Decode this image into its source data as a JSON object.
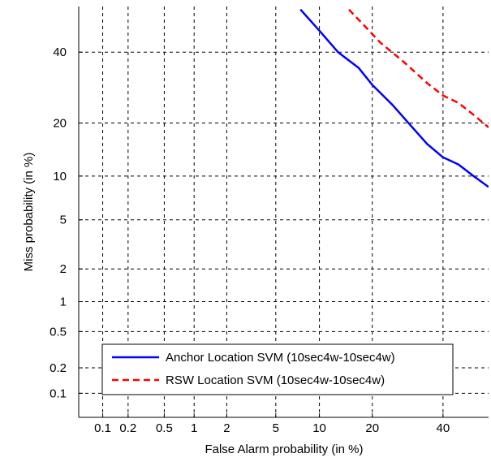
{
  "chart_data": {
    "type": "line",
    "title": "",
    "xlabel": "False Alarm probability (in %)",
    "ylabel": "Miss probability (in %)",
    "x_scale": "probit",
    "y_scale": "probit",
    "xlim": [
      0.05,
      55
    ],
    "ylim": [
      0.05,
      55
    ],
    "grid": true,
    "legend_position": "bottom-left",
    "x_ticks": [
      0.1,
      0.2,
      0.5,
      1,
      2,
      5,
      10,
      20,
      40
    ],
    "x_tick_labels": [
      "0.1",
      "0.2",
      "0.5",
      "1",
      "2",
      "5",
      "10",
      "20",
      "40"
    ],
    "y_ticks": [
      0.1,
      0.2,
      0.5,
      1,
      2,
      5,
      10,
      20,
      40
    ],
    "y_tick_labels": [
      "0.1",
      "0.2",
      "0.5",
      "1",
      "2",
      "5",
      "10",
      "20",
      "40"
    ],
    "series": [
      {
        "name": "Anchor Location SVM (10sec4w-10sec4w)",
        "color": "#0000ff",
        "dash": "solid",
        "x": [
          7.5,
          10,
          13,
          17,
          20,
          25,
          30,
          35,
          40,
          45,
          50,
          55
        ],
        "y": [
          54,
          47,
          40,
          35,
          30,
          24.5,
          19.5,
          15.5,
          13,
          11.8,
          10,
          8.5
        ]
      },
      {
        "name": "RSW Location SVM (10sec4w-10sec4w)",
        "color": "#ff0000",
        "dash": "dashed",
        "x": [
          15,
          18,
          22,
          28,
          35,
          40,
          45,
          50,
          55
        ],
        "y": [
          54,
          49,
          43,
          37,
          30.5,
          27,
          25,
          22,
          19
        ]
      }
    ]
  }
}
